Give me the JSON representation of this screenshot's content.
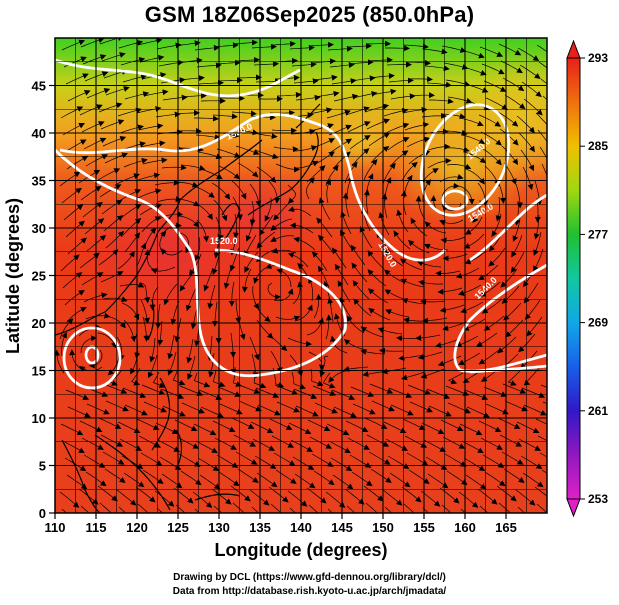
{
  "title": "GSM 18Z06Sep2025 (850.0hPa)",
  "x_axis": {
    "label": "Longitude (degrees)",
    "ticks": [
      "110",
      "115",
      "120",
      "125",
      "130",
      "135",
      "140",
      "145",
      "150",
      "155",
      "160",
      "165"
    ]
  },
  "y_axis": {
    "label": "Latitude  (degrees)",
    "ticks": [
      "0",
      "5",
      "10",
      "15",
      "20",
      "25",
      "30",
      "35",
      "40",
      "45"
    ]
  },
  "colorbar": {
    "ticks": [
      "253",
      "261",
      "269",
      "277",
      "285",
      "293"
    ],
    "range": [
      253,
      293
    ],
    "colors": [
      "#e020c8",
      "#5018c0",
      "#2040e0",
      "#10b0e8",
      "#10c060",
      "#7ad010",
      "#e8e000",
      "#f0a000",
      "#f06020",
      "#e02010"
    ]
  },
  "contour_labels": [
    "1520.0",
    "1520.0",
    "1520.0",
    "1540.0",
    "1540.0",
    "1540.0"
  ],
  "credits": {
    "line1": "Drawing by DCL (https://www.gfd-dennou.org/library/dcl/)",
    "line2": "Data from http://database.rish.kyoto-u.ac.jp/arch/jmadata/"
  }
}
